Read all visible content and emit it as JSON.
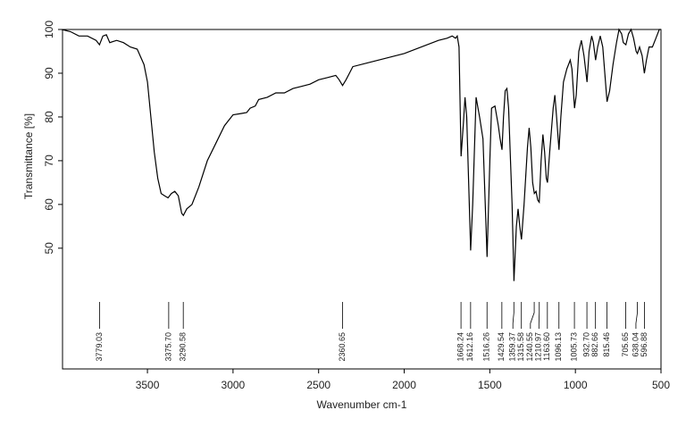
{
  "chart_data": {
    "type": "line",
    "xlabel": "Wavenumber cm-1",
    "ylabel": "Transmittance [%]",
    "xlim": [
      3996,
      500
    ],
    "ylim": [
      22.4,
      100
    ],
    "xticks": [
      3500,
      3000,
      2500,
      2000,
      1500,
      1000,
      500
    ],
    "yticks": [
      50,
      60,
      70,
      80,
      90,
      100
    ],
    "color": "#000000",
    "x": [
      4000,
      3950,
      3900,
      3850,
      3800,
      3780,
      3760,
      3740,
      3720,
      3680,
      3640,
      3600,
      3560,
      3520,
      3500,
      3480,
      3460,
      3440,
      3420,
      3400,
      3380,
      3360,
      3340,
      3320,
      3300,
      3290,
      3270,
      3240,
      3200,
      3150,
      3100,
      3050,
      3000,
      2950,
      2920,
      2900,
      2870,
      2850,
      2800,
      2750,
      2700,
      2650,
      2600,
      2550,
      2500,
      2450,
      2400,
      2380,
      2360,
      2340,
      2320,
      2300,
      2200,
      2100,
      2000,
      1900,
      1800,
      1750,
      1720,
      1700,
      1690,
      1680,
      1668,
      1655,
      1645,
      1635,
      1620,
      1612,
      1600,
      1580,
      1560,
      1540,
      1516,
      1500,
      1490,
      1470,
      1450,
      1440,
      1429,
      1420,
      1410,
      1400,
      1390,
      1370,
      1359,
      1345,
      1335,
      1325,
      1315,
      1300,
      1280,
      1270,
      1260,
      1250,
      1240,
      1230,
      1220,
      1211,
      1200,
      1190,
      1180,
      1170,
      1163,
      1150,
      1130,
      1120,
      1110,
      1096,
      1085,
      1070,
      1050,
      1030,
      1020,
      1005,
      995,
      980,
      965,
      950,
      932,
      920,
      905,
      895,
      882,
      870,
      855,
      840,
      815,
      800,
      780,
      760,
      745,
      730,
      720,
      705,
      690,
      675,
      660,
      645,
      638,
      625,
      610,
      597,
      585,
      570,
      550,
      530,
      510,
      500
    ],
    "values": [
      100,
      99.5,
      98.5,
      98.5,
      97.5,
      96.5,
      98.5,
      98.8,
      97,
      97.5,
      97,
      96,
      95.5,
      92,
      88,
      80,
      72,
      66,
      62.5,
      62,
      61.5,
      62.5,
      63,
      62,
      58,
      57.5,
      59,
      60,
      64,
      70,
      74,
      78,
      80.5,
      80.8,
      81,
      82,
      82.5,
      84,
      84.5,
      85.5,
      85.5,
      86.5,
      87,
      87.5,
      88.5,
      89,
      89.5,
      88.5,
      87.2,
      88.5,
      90,
      91.5,
      92.5,
      93.5,
      94.5,
      96,
      97.5,
      98,
      98.5,
      98,
      98.5,
      96,
      71,
      78,
      84.5,
      80,
      60,
      49.5,
      60,
      84.5,
      80,
      75,
      48,
      70,
      82,
      82.5,
      78,
      75,
      72.5,
      80,
      86,
      86.5,
      82,
      60,
      42.5,
      55,
      59,
      55,
      52,
      60,
      73,
      77.5,
      73,
      65,
      62.5,
      63,
      61,
      60.5,
      70,
      76,
      72,
      66,
      65,
      72,
      82,
      85,
      80,
      72.5,
      80,
      88,
      91,
      93,
      91,
      82,
      85,
      95,
      97.5,
      94,
      88,
      95,
      98.5,
      97,
      93,
      96,
      98.5,
      96,
      83.5,
      86,
      92,
      97,
      100,
      99,
      97,
      96.5,
      99,
      100,
      98,
      95,
      94.5,
      96,
      94,
      90,
      93,
      96,
      96,
      98,
      100,
      100
    ],
    "peaks": [
      {
        "value": 3779.03,
        "label": "3779.03"
      },
      {
        "value": 3375.7,
        "label": "3375.70"
      },
      {
        "value": 3290.58,
        "label": "3290.58"
      },
      {
        "value": 2360.65,
        "label": "2360.65"
      },
      {
        "value": 1668.24,
        "label": "1668.24"
      },
      {
        "value": 1612.16,
        "label": "1612.16"
      },
      {
        "value": 1516.26,
        "label": "1516.26"
      },
      {
        "value": 1429.54,
        "label": "1429.54"
      },
      {
        "value": 1359.37,
        "label": "1359.37"
      },
      {
        "value": 1315.58,
        "label": "1315.58"
      },
      {
        "value": 1240.55,
        "label": "1240.55"
      },
      {
        "value": 1210.97,
        "label": "1210.97"
      },
      {
        "value": 1163.6,
        "label": "1163.60"
      },
      {
        "value": 1096.13,
        "label": "1096.13"
      },
      {
        "value": 1005.73,
        "label": "1005.73"
      },
      {
        "value": 932.7,
        "label": "932.70"
      },
      {
        "value": 882.66,
        "label": "882.66"
      },
      {
        "value": 815.46,
        "label": "815.46"
      },
      {
        "value": 705.65,
        "label": "705.65"
      },
      {
        "value": 638.04,
        "label": "638.04"
      },
      {
        "value": 596.88,
        "label": "596.88"
      }
    ]
  }
}
